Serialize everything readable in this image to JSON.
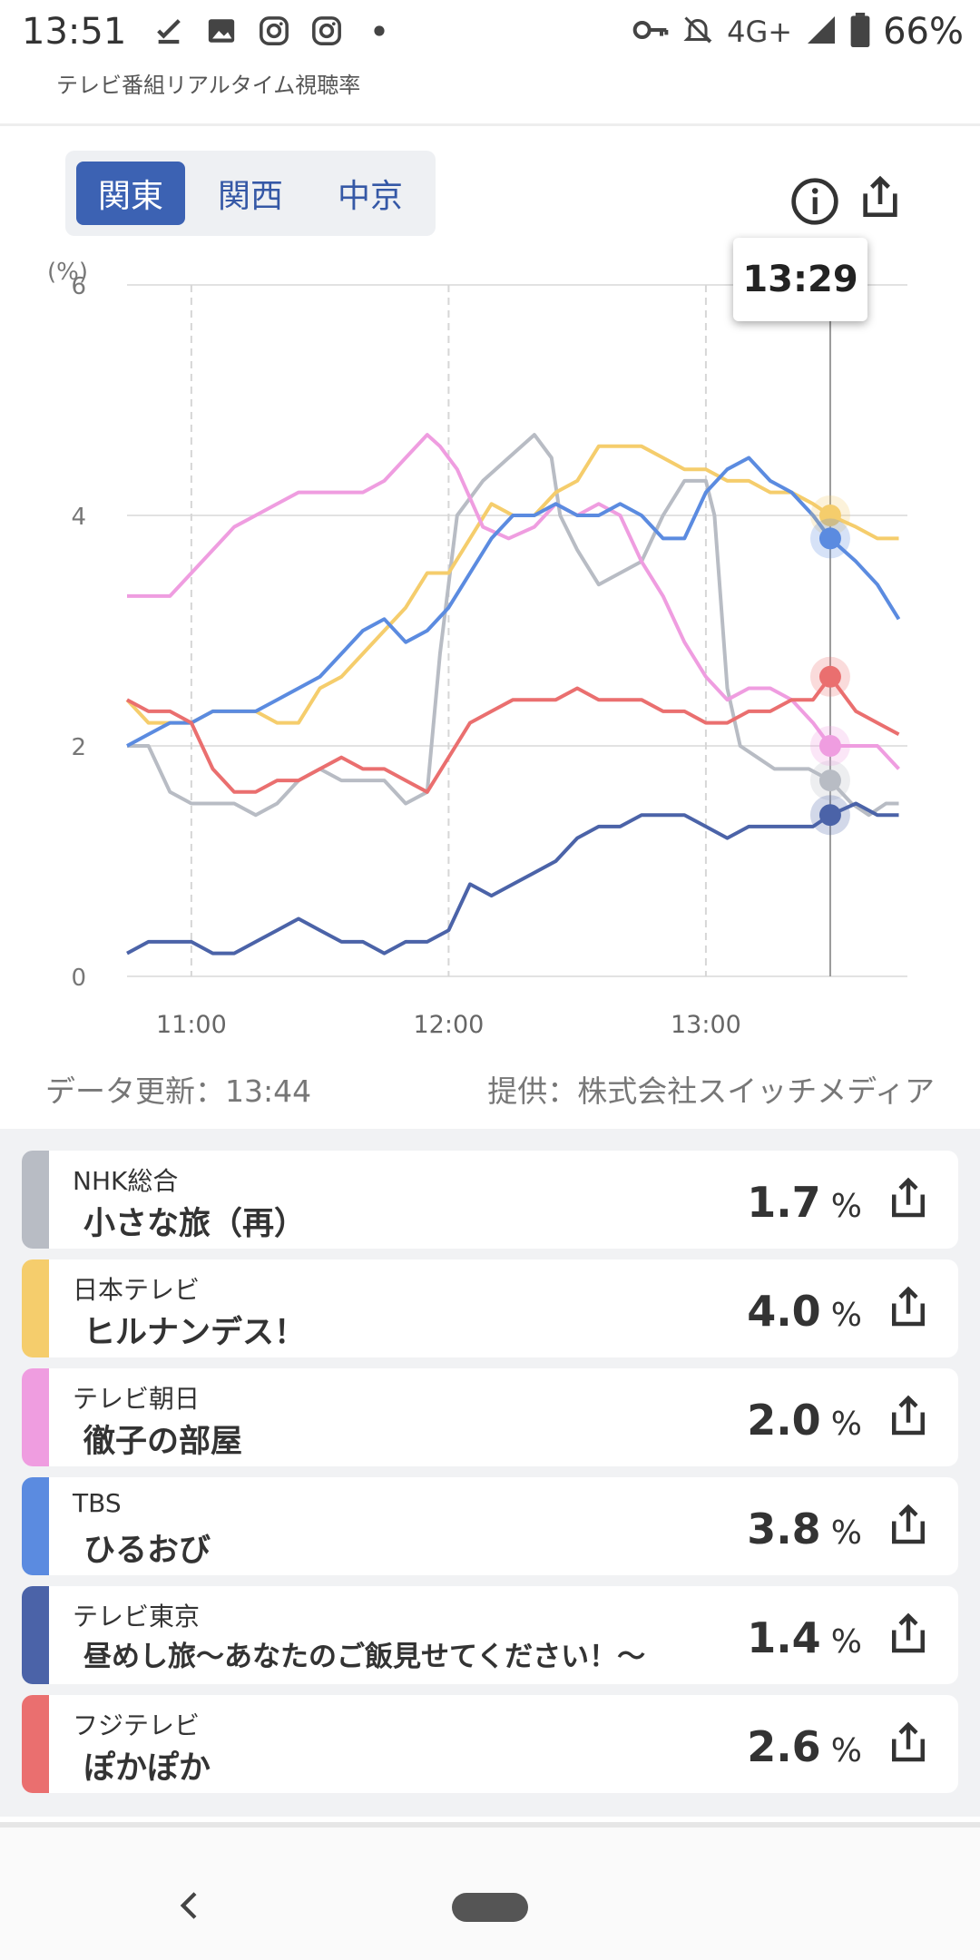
{
  "status_bar": {
    "time": "13:51",
    "icons_left": [
      "download-done-icon",
      "image-icon",
      "instagram-icon",
      "instagram-icon",
      "dot-icon"
    ],
    "network": "4G+",
    "battery": "66%"
  },
  "app": {
    "title": "テレビ番組リアルタイム視聴率"
  },
  "region_tabs": [
    {
      "label": "関東",
      "active": true
    },
    {
      "label": "関西",
      "active": false
    },
    {
      "label": "中京",
      "active": false
    }
  ],
  "header_icons": [
    "info-icon",
    "share-icon"
  ],
  "tooltip": {
    "time": "13:29"
  },
  "chart_data": {
    "type": "line",
    "y_unit": "(%)",
    "ylim": [
      0,
      6
    ],
    "yticks": [
      "0",
      "2",
      "4",
      "6"
    ],
    "xlim": [
      "10:45",
      "13:47"
    ],
    "xticks": [
      "11:00",
      "12:00",
      "13:00"
    ],
    "grid": true,
    "cursor_time": "13:29",
    "series": [
      {
        "name": "NHK総合",
        "color": "#b8bcc4",
        "x": [
          "10:45",
          "10:50",
          "10:55",
          "11:00",
          "11:05",
          "11:10",
          "11:15",
          "11:20",
          "11:25",
          "11:30",
          "11:35",
          "11:40",
          "11:45",
          "11:50",
          "11:55",
          "11:58",
          "12:02",
          "12:08",
          "12:14",
          "12:20",
          "12:24",
          "12:26",
          "12:30",
          "12:35",
          "12:40",
          "12:45",
          "12:50",
          "12:55",
          "13:00",
          "13:02",
          "13:05",
          "13:08",
          "13:12",
          "13:16",
          "13:20",
          "13:24",
          "13:29",
          "13:34",
          "13:38",
          "13:42",
          "13:45"
        ],
        "y": [
          2.0,
          2.0,
          1.6,
          1.5,
          1.5,
          1.5,
          1.4,
          1.5,
          1.7,
          1.8,
          1.7,
          1.7,
          1.7,
          1.5,
          1.6,
          2.8,
          4.0,
          4.3,
          4.5,
          4.7,
          4.5,
          4.0,
          3.7,
          3.4,
          3.5,
          3.6,
          4.0,
          4.3,
          4.3,
          4.0,
          2.5,
          2.0,
          1.9,
          1.8,
          1.8,
          1.8,
          1.7,
          1.5,
          1.4,
          1.5,
          1.5
        ]
      },
      {
        "name": "日本テレビ",
        "color": "#f5cd6c",
        "x": [
          "10:45",
          "10:50",
          "10:55",
          "11:00",
          "11:05",
          "11:10",
          "11:15",
          "11:20",
          "11:25",
          "11:30",
          "11:35",
          "11:40",
          "11:45",
          "11:50",
          "11:55",
          "12:00",
          "12:05",
          "12:10",
          "12:15",
          "12:20",
          "12:25",
          "12:30",
          "12:35",
          "12:40",
          "12:45",
          "12:50",
          "12:55",
          "13:00",
          "13:05",
          "13:10",
          "13:15",
          "13:20",
          "13:25",
          "13:29",
          "13:35",
          "13:40",
          "13:45"
        ],
        "y": [
          2.4,
          2.2,
          2.2,
          2.2,
          2.3,
          2.3,
          2.3,
          2.2,
          2.2,
          2.5,
          2.6,
          2.8,
          3.0,
          3.2,
          3.5,
          3.5,
          3.8,
          4.1,
          4.0,
          4.0,
          4.2,
          4.3,
          4.6,
          4.6,
          4.6,
          4.5,
          4.4,
          4.4,
          4.3,
          4.3,
          4.2,
          4.2,
          4.1,
          4.0,
          3.9,
          3.8,
          3.8
        ]
      },
      {
        "name": "テレビ朝日",
        "color": "#ef9de0",
        "x": [
          "10:45",
          "10:50",
          "10:55",
          "11:00",
          "11:05",
          "11:10",
          "11:15",
          "11:20",
          "11:25",
          "11:30",
          "11:35",
          "11:40",
          "11:45",
          "11:50",
          "11:55",
          "11:58",
          "12:02",
          "12:08",
          "12:14",
          "12:20",
          "12:25",
          "12:30",
          "12:35",
          "12:40",
          "12:45",
          "12:50",
          "12:55",
          "13:00",
          "13:05",
          "13:10",
          "13:15",
          "13:20",
          "13:25",
          "13:29",
          "13:35",
          "13:40",
          "13:45"
        ],
        "y": [
          3.3,
          3.3,
          3.3,
          3.5,
          3.7,
          3.9,
          4.0,
          4.1,
          4.2,
          4.2,
          4.2,
          4.2,
          4.3,
          4.5,
          4.7,
          4.6,
          4.4,
          3.9,
          3.8,
          3.9,
          4.1,
          4.0,
          4.1,
          4.0,
          3.6,
          3.3,
          2.9,
          2.6,
          2.4,
          2.5,
          2.5,
          2.4,
          2.2,
          2.0,
          2.0,
          2.0,
          1.8
        ]
      },
      {
        "name": "TBS",
        "color": "#5b8be0",
        "x": [
          "10:45",
          "10:50",
          "10:55",
          "11:00",
          "11:05",
          "11:10",
          "11:15",
          "11:20",
          "11:25",
          "11:30",
          "11:35",
          "11:40",
          "11:45",
          "11:50",
          "11:55",
          "12:00",
          "12:05",
          "12:10",
          "12:15",
          "12:20",
          "12:25",
          "12:30",
          "12:35",
          "12:40",
          "12:45",
          "12:50",
          "12:55",
          "13:00",
          "13:05",
          "13:10",
          "13:15",
          "13:20",
          "13:25",
          "13:29",
          "13:35",
          "13:40",
          "13:45"
        ],
        "y": [
          2.0,
          2.1,
          2.2,
          2.2,
          2.3,
          2.3,
          2.3,
          2.4,
          2.5,
          2.6,
          2.8,
          3.0,
          3.1,
          2.9,
          3.0,
          3.2,
          3.5,
          3.8,
          4.0,
          4.0,
          4.1,
          4.0,
          4.0,
          4.1,
          4.0,
          3.8,
          3.8,
          4.2,
          4.4,
          4.5,
          4.3,
          4.2,
          4.0,
          3.8,
          3.6,
          3.4,
          3.1
        ]
      },
      {
        "name": "テレビ東京",
        "color": "#4b63a8",
        "x": [
          "10:45",
          "10:50",
          "10:55",
          "11:00",
          "11:05",
          "11:10",
          "11:15",
          "11:20",
          "11:25",
          "11:30",
          "11:35",
          "11:40",
          "11:45",
          "11:50",
          "11:55",
          "12:00",
          "12:05",
          "12:10",
          "12:15",
          "12:20",
          "12:25",
          "12:30",
          "12:35",
          "12:40",
          "12:45",
          "12:50",
          "12:55",
          "13:00",
          "13:05",
          "13:10",
          "13:15",
          "13:20",
          "13:25",
          "13:29",
          "13:35",
          "13:40",
          "13:45"
        ],
        "y": [
          0.2,
          0.3,
          0.3,
          0.3,
          0.2,
          0.2,
          0.3,
          0.4,
          0.5,
          0.4,
          0.3,
          0.3,
          0.2,
          0.3,
          0.3,
          0.4,
          0.8,
          0.7,
          0.8,
          0.9,
          1.0,
          1.2,
          1.3,
          1.3,
          1.4,
          1.4,
          1.4,
          1.3,
          1.2,
          1.3,
          1.3,
          1.3,
          1.3,
          1.4,
          1.5,
          1.4,
          1.4
        ]
      },
      {
        "name": "フジテレビ",
        "color": "#ea6f6f",
        "x": [
          "10:45",
          "10:50",
          "10:55",
          "11:00",
          "11:05",
          "11:10",
          "11:15",
          "11:20",
          "11:25",
          "11:30",
          "11:35",
          "11:40",
          "11:45",
          "11:50",
          "11:55",
          "12:00",
          "12:05",
          "12:10",
          "12:15",
          "12:20",
          "12:25",
          "12:30",
          "12:35",
          "12:40",
          "12:45",
          "12:50",
          "12:55",
          "13:00",
          "13:05",
          "13:10",
          "13:15",
          "13:20",
          "13:25",
          "13:29",
          "13:35",
          "13:40",
          "13:45"
        ],
        "y": [
          2.4,
          2.3,
          2.3,
          2.2,
          1.8,
          1.6,
          1.6,
          1.7,
          1.7,
          1.8,
          1.9,
          1.8,
          1.8,
          1.7,
          1.6,
          1.9,
          2.2,
          2.3,
          2.4,
          2.4,
          2.4,
          2.5,
          2.4,
          2.4,
          2.4,
          2.3,
          2.3,
          2.2,
          2.2,
          2.3,
          2.3,
          2.4,
          2.4,
          2.6,
          2.3,
          2.2,
          2.1
        ]
      }
    ]
  },
  "footnotes": {
    "updated": "データ更新：13:44",
    "provider": "提供：株式会社スイッチメディア"
  },
  "channels": [
    {
      "channel": "NHK総合",
      "program": "小さな旅（再）",
      "value": "1.7",
      "unit": "%",
      "color": "#b8bcc4"
    },
    {
      "channel": "日本テレビ",
      "program": "ヒルナンデス！",
      "value": "4.0",
      "unit": "%",
      "color": "#f5cd6c"
    },
    {
      "channel": "テレビ朝日",
      "program": "徹子の部屋",
      "value": "2.0",
      "unit": "%",
      "color": "#ef9de0"
    },
    {
      "channel": "TBS",
      "program": "ひるおび",
      "value": "3.8",
      "unit": "%",
      "color": "#5b8be0"
    },
    {
      "channel": "テレビ東京",
      "program": "昼めし旅〜あなたのご飯見せてください！〜",
      "value": "1.4",
      "unit": "%",
      "color": "#4b63a8"
    },
    {
      "channel": "フジテレビ",
      "program": "ぽかぽか",
      "value": "2.6",
      "unit": "%",
      "color": "#ea6f6f"
    }
  ]
}
